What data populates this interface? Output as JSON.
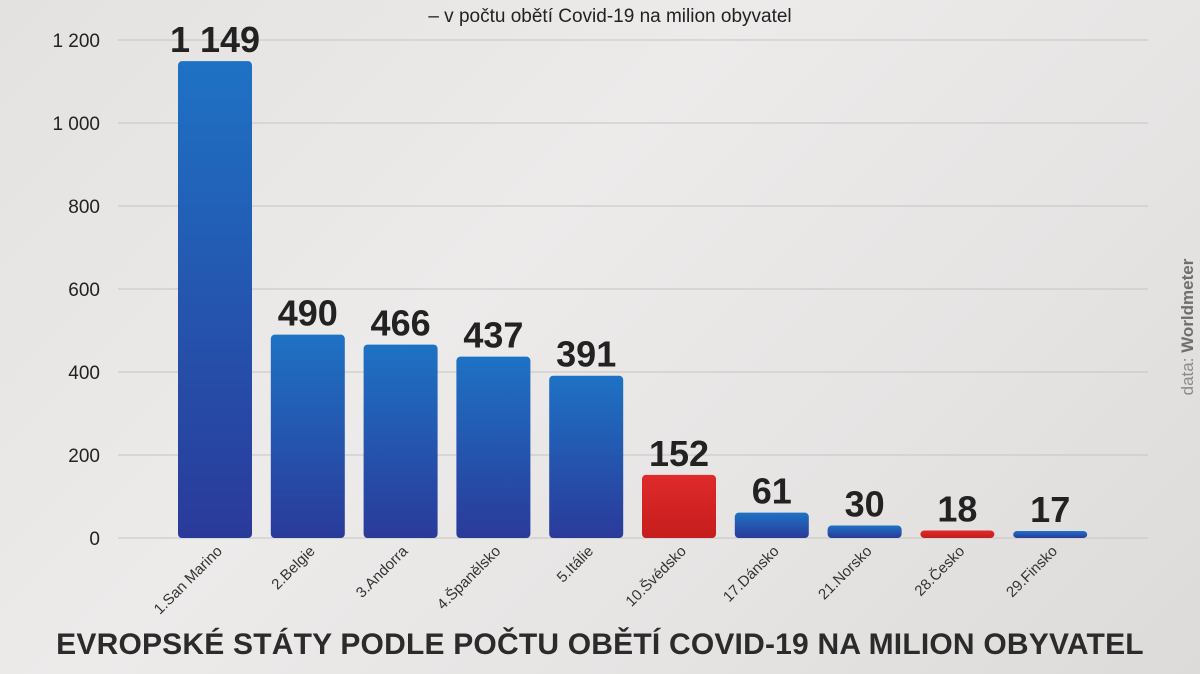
{
  "subtitle": "– v počtu obětí Covid-19 na milion obyvatel",
  "title": "EVROPSKÉ STÁTY PODLE POČTU OBĚTÍ COVID-19 NA MILION OBYVATEL",
  "source": {
    "prefix": "data:",
    "name": "Worldmeter"
  },
  "colors": {
    "blue_top": "#1e72c4",
    "blue_bottom": "#2a3a9a",
    "red_top": "#e02a2a",
    "red_bottom": "#c51d1d",
    "grid": "#c9c7c4",
    "text": "#222222"
  },
  "chart_data": {
    "type": "bar",
    "categories": [
      "1.San Marino",
      "2.Belgie",
      "3.Andorra",
      "4.Španělsko",
      "5.Itálie",
      "10.Švédsko",
      "17.Dánsko",
      "21.Norsko",
      "28.Česko",
      "29.Finsko"
    ],
    "values": [
      1149,
      490,
      466,
      437,
      391,
      152,
      61,
      30,
      18,
      17
    ],
    "value_labels": [
      "1 149",
      "490",
      "466",
      "437",
      "391",
      "152",
      "61",
      "30",
      "18",
      "17"
    ],
    "highlight": [
      "blue",
      "blue",
      "blue",
      "blue",
      "blue",
      "red",
      "blue",
      "blue",
      "red",
      "blue"
    ],
    "ylim": [
      0,
      1200
    ],
    "yticks": [
      0,
      200,
      400,
      600,
      800,
      1000,
      1200
    ],
    "ytick_labels": [
      "0",
      "200",
      "400",
      "600",
      "800",
      "1 000",
      "1 200"
    ],
    "grid": true
  }
}
